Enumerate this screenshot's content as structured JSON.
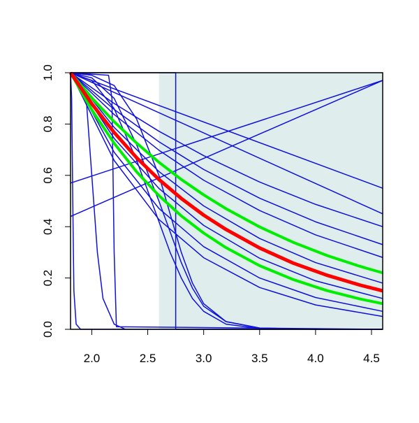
{
  "chart_data": {
    "type": "line",
    "xlim": [
      1.81,
      4.6
    ],
    "ylim": [
      0,
      1
    ],
    "xticks": [
      {
        "value": 2,
        "label": "2.0"
      },
      2.5,
      {
        "value": 3,
        "label": "3.0"
      },
      3.5,
      {
        "value": 4,
        "label": "4.0"
      },
      4.5
    ],
    "yticks": [
      {
        "value": 0,
        "label": "0.0"
      },
      0.2,
      0.4,
      0.6,
      0.8,
      {
        "value": 1,
        "label": "1.0"
      }
    ],
    "shade_xlim": [
      2.6,
      4.6
    ],
    "shade_color": "#dfeded",
    "series": [
      {
        "color": "#1010dd",
        "width": 1.5,
        "x": [
          1.81,
          4.6
        ],
        "values": [
          0.57,
          0.97
        ]
      },
      {
        "color": "#1010dd",
        "width": 1.5,
        "x": [
          1.81,
          4.6
        ],
        "values": [
          0.44,
          0.97
        ]
      },
      {
        "color": "#1010dd",
        "width": 1.5,
        "x": [
          1.81,
          4.6
        ],
        "values": [
          1,
          0.55
        ]
      },
      {
        "color": "#1010dd",
        "width": 1.5,
        "x": [
          1.81,
          4.6
        ],
        "values": [
          1,
          0.45
        ]
      },
      {
        "color": "#1010dd",
        "width": 1.5,
        "x": [
          1.81,
          2.2,
          2.6,
          3.0,
          3.5,
          4.0,
          4.6
        ],
        "values": [
          1,
          0.88,
          0.772,
          0.677,
          0.574,
          0.487,
          0.4
        ]
      },
      {
        "color": "#1010dd",
        "width": 1.5,
        "x": [
          1.81,
          2.2,
          2.6,
          3.0,
          3.5,
          4.0,
          4.6
        ],
        "values": [
          1,
          0.857,
          0.731,
          0.623,
          0.511,
          0.419,
          0.33
        ]
      },
      {
        "color": "#1010dd",
        "width": 1.5,
        "x": [
          1.81,
          2.2,
          2.6,
          3.0,
          3.5,
          4.0,
          4.6
        ],
        "values": [
          1,
          0.837,
          0.698,
          0.581,
          0.463,
          0.368,
          0.28
        ]
      },
      {
        "color": "#1010dd",
        "width": 1.5,
        "x": [
          1.81,
          2.2,
          2.6,
          3.0,
          3.5,
          4.0,
          4.6
        ],
        "values": [
          1,
          0.787,
          0.615,
          0.481,
          0.354,
          0.26,
          0.18
        ]
      },
      {
        "color": "#1010dd",
        "width": 1.5,
        "x": [
          1.81,
          2.2,
          2.6,
          3.0,
          3.5,
          4.0,
          4.6
        ],
        "values": [
          1,
          0.744,
          0.549,
          0.405,
          0.277,
          0.189,
          0.12
        ]
      },
      {
        "color": "#1010dd",
        "width": 1.5,
        "x": [
          1.81,
          2.2,
          2.6,
          3.0,
          3.5,
          4.0,
          4.6
        ],
        "values": [
          1,
          0.69,
          0.471,
          0.322,
          0.2,
          0.124,
          0.07
        ]
      },
      {
        "color": "#1010dd",
        "width": 1.5,
        "x": [
          1.81,
          2.2,
          2.6,
          3.0,
          3.5,
          4.0,
          4.6
        ],
        "values": [
          1,
          0.658,
          0.428,
          0.279,
          0.163,
          0.095,
          0.05
        ]
      },
      {
        "color": "#1010dd",
        "width": 1.5,
        "x": [
          1.81,
          2.0,
          2.2,
          2.4,
          2.6,
          2.7,
          2.8,
          2.9,
          3.0,
          3.2,
          3.5,
          4.0,
          4.6
        ],
        "values": [
          1,
          0.98,
          0.9,
          0.72,
          0.5,
          0.38,
          0.26,
          0.16,
          0.09,
          0.03,
          0.005,
          0,
          0
        ]
      },
      {
        "color": "#1010dd",
        "width": 1.5,
        "x": [
          1.81,
          2.0,
          2.2,
          2.4,
          2.6,
          2.7,
          2.8,
          2.9,
          3.0,
          3.2,
          3.5,
          4.0,
          4.6
        ],
        "values": [
          1,
          0.99,
          0.95,
          0.82,
          0.6,
          0.45,
          0.3,
          0.18,
          0.1,
          0.03,
          0.005,
          0,
          0
        ]
      },
      {
        "color": "#1010dd",
        "width": 1.5,
        "x": [
          1.81,
          2.0,
          2.2,
          2.4,
          2.6,
          2.7,
          2.8,
          2.9,
          3.0,
          3.2,
          3.5,
          4.0,
          4.6
        ],
        "values": [
          1,
          0.97,
          0.86,
          0.66,
          0.42,
          0.3,
          0.2,
          0.12,
          0.07,
          0.02,
          0.003,
          0,
          0
        ]
      },
      {
        "color": "#1010dd",
        "width": 1.5,
        "x": [
          1.81,
          2.75,
          2.75,
          4.6
        ],
        "values": [
          1,
          1,
          0,
          0
        ]
      },
      {
        "color": "#1010dd",
        "width": 1.5,
        "x": [
          1.81,
          2.15,
          2.18,
          2.2,
          2.22,
          4.6
        ],
        "values": [
          1,
          0.99,
          0.9,
          0.3,
          0.01,
          0
        ]
      },
      {
        "color": "#1010dd",
        "width": 1.5,
        "x": [
          1.81,
          1.9,
          1.95,
          2.0,
          2.05,
          2.1,
          2.2,
          2.3
        ],
        "values": [
          1,
          0.97,
          0.9,
          0.6,
          0.3,
          0.12,
          0.02,
          0
        ]
      },
      {
        "color": "#1010dd",
        "width": 1.5,
        "x": [
          1.81,
          1.82,
          1.83,
          1.84,
          1.86,
          1.9,
          4.6
        ],
        "values": [
          1,
          0.9,
          0.5,
          0.15,
          0.02,
          0,
          0
        ]
      },
      {
        "color": "#00ee00",
        "width": 4,
        "x": [
          1.81,
          2.0,
          2.2,
          2.4,
          2.6,
          2.8,
          3.0,
          3.2,
          3.5,
          3.8,
          4.1,
          4.4,
          4.6
        ],
        "values": [
          1,
          0.902,
          0.809,
          0.726,
          0.651,
          0.584,
          0.524,
          0.47,
          0.399,
          0.339,
          0.288,
          0.245,
          0.22
        ]
      },
      {
        "color": "#00ee00",
        "width": 4,
        "x": [
          1.81,
          2.0,
          2.2,
          2.4,
          2.6,
          2.8,
          3.0,
          3.2,
          3.5,
          3.8,
          4.1,
          4.4,
          4.6
        ],
        "values": [
          1,
          0.855,
          0.725,
          0.614,
          0.521,
          0.442,
          0.375,
          0.318,
          0.248,
          0.194,
          0.151,
          0.118,
          0.1
        ]
      },
      {
        "color": "#ff0000",
        "width": 5,
        "x": [
          1.81,
          2.0,
          2.2,
          2.4,
          2.6,
          2.8,
          3.0,
          3.2,
          3.5,
          3.8,
          4.1,
          4.4,
          4.6
        ],
        "values": [
          1,
          0.879,
          0.767,
          0.669,
          0.584,
          0.51,
          0.445,
          0.389,
          0.317,
          0.258,
          0.211,
          0.172,
          0.15
        ]
      }
    ]
  }
}
